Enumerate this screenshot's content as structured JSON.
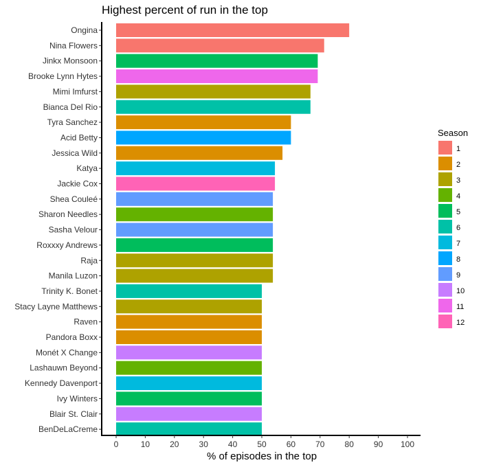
{
  "chart_data": {
    "type": "bar",
    "orientation": "horizontal",
    "title": "Highest percent of run in the top",
    "xlabel": "% of episodes in the top",
    "ylabel": "",
    "xlim": [
      0,
      100
    ],
    "xticks": [
      0,
      10,
      20,
      30,
      40,
      50,
      60,
      70,
      80,
      90,
      100
    ],
    "grid": false,
    "legend": {
      "title": "Season",
      "placement": "right",
      "entries": [
        {
          "label": "1",
          "color": "#F8766D"
        },
        {
          "label": "2",
          "color": "#DB8E00"
        },
        {
          "label": "3",
          "color": "#AEA200"
        },
        {
          "label": "4",
          "color": "#64B200"
        },
        {
          "label": "5",
          "color": "#00BD5C"
        },
        {
          "label": "6",
          "color": "#00C1A7"
        },
        {
          "label": "7",
          "color": "#00BADE"
        },
        {
          "label": "8",
          "color": "#00A6FF"
        },
        {
          "label": "9",
          "color": "#619CFF"
        },
        {
          "label": "10",
          "color": "#C77CFF"
        },
        {
          "label": "11",
          "color": "#EF67EB"
        },
        {
          "label": "12",
          "color": "#FF63B6"
        }
      ]
    },
    "bars": [
      {
        "name": "Ongina",
        "value": 80,
        "season": "1"
      },
      {
        "name": "Nina Flowers",
        "value": 71.4,
        "season": "1"
      },
      {
        "name": "Jinkx Monsoon",
        "value": 69.2,
        "season": "5"
      },
      {
        "name": "Brooke Lynn Hytes",
        "value": 69.2,
        "season": "11"
      },
      {
        "name": "Mimi Imfurst",
        "value": 66.7,
        "season": "3"
      },
      {
        "name": "Bianca Del Rio",
        "value": 66.7,
        "season": "6"
      },
      {
        "name": "Tyra Sanchez",
        "value": 60,
        "season": "2"
      },
      {
        "name": "Acid Betty",
        "value": 60,
        "season": "8"
      },
      {
        "name": "Jessica Wild",
        "value": 57.1,
        "season": "2"
      },
      {
        "name": "Katya",
        "value": 54.5,
        "season": "7"
      },
      {
        "name": "Jackie Cox",
        "value": 54.5,
        "season": "12"
      },
      {
        "name": "Shea Couleé",
        "value": 53.8,
        "season": "9"
      },
      {
        "name": "Sharon Needles",
        "value": 53.8,
        "season": "4"
      },
      {
        "name": "Sasha Velour",
        "value": 53.8,
        "season": "9"
      },
      {
        "name": "Roxxxy Andrews",
        "value": 53.8,
        "season": "5"
      },
      {
        "name": "Raja",
        "value": 53.8,
        "season": "3"
      },
      {
        "name": "Manila Luzon",
        "value": 53.8,
        "season": "3"
      },
      {
        "name": "Trinity K. Bonet",
        "value": 50,
        "season": "6"
      },
      {
        "name": "Stacy Layne Matthews",
        "value": 50,
        "season": "3"
      },
      {
        "name": "Raven",
        "value": 50,
        "season": "2"
      },
      {
        "name": "Pandora Boxx",
        "value": 50,
        "season": "2"
      },
      {
        "name": "Monét X Change",
        "value": 50,
        "season": "10"
      },
      {
        "name": "Lashauwn Beyond",
        "value": 50,
        "season": "4"
      },
      {
        "name": "Kennedy Davenport",
        "value": 50,
        "season": "7"
      },
      {
        "name": "Ivy Winters",
        "value": 50,
        "season": "5"
      },
      {
        "name": "Blair St. Clair",
        "value": 50,
        "season": "10"
      },
      {
        "name": "BenDeLaCreme",
        "value": 50,
        "season": "6"
      }
    ]
  }
}
